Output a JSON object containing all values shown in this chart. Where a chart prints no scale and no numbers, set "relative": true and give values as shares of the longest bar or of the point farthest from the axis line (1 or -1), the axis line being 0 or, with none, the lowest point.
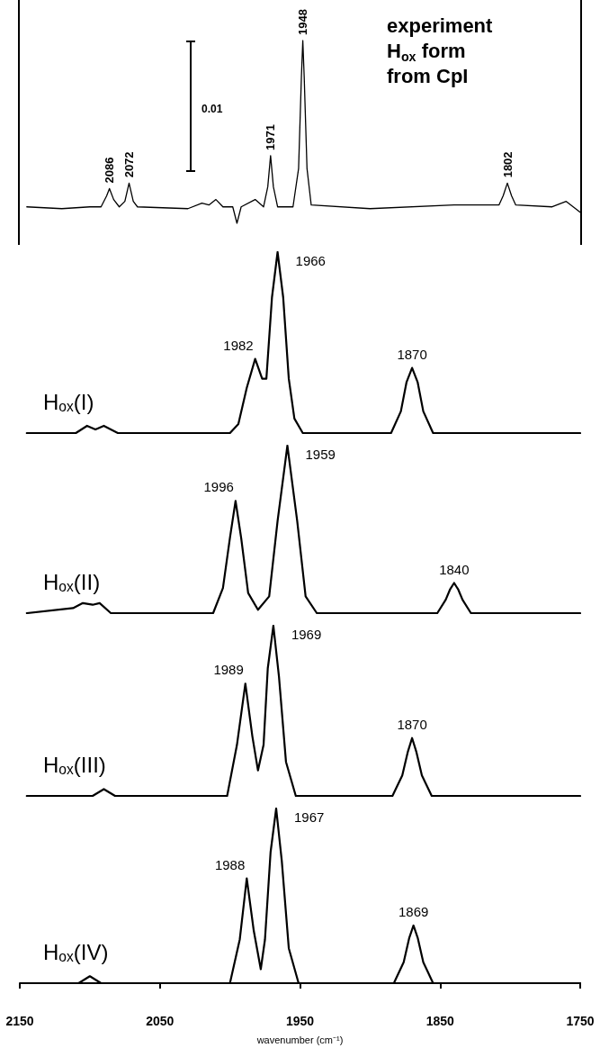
{
  "chart_data": [
    {
      "type": "line",
      "title": "experiment\nH$_{ox}$ form\nfrom CpI",
      "relative": true,
      "xlim": [
        2150,
        1750
      ],
      "tick_labels": false,
      "marker": "none",
      "x": [
        2145,
        2120,
        2100,
        2092,
        2088,
        2086,
        2083,
        2079,
        2075,
        2072,
        2069,
        2066,
        2030,
        2020,
        2015,
        2010,
        2005,
        1998,
        1995,
        1992,
        1982,
        1976,
        1973,
        1971,
        1969,
        1966,
        1955,
        1951,
        1949,
        1948,
        1947,
        1945,
        1942,
        1900,
        1840,
        1808,
        1805,
        1802,
        1799,
        1796,
        1770,
        1760,
        1750
      ],
      "series": [
        {
          "color": "#000000",
          "values": [
            0.09,
            0.08,
            0.09,
            0.09,
            0.15,
            0.19,
            0.13,
            0.09,
            0.12,
            0.22,
            0.12,
            0.09,
            0.08,
            0.11,
            0.1,
            0.13,
            0.09,
            0.09,
            0,
            0.09,
            0.13,
            0.09,
            0.2,
            0.37,
            0.2,
            0.09,
            0.09,
            0.3,
            0.8,
            1.0,
            0.8,
            0.3,
            0.1,
            0.08,
            0.1,
            0.1,
            0.15,
            0.22,
            0.15,
            0.1,
            0.09,
            0.12,
            0.06
          ]
        }
      ],
      "annotations": [
        {
          "text": "2086",
          "x": 2086,
          "y": 0.19
        },
        {
          "text": "2072",
          "x": 2072,
          "y": 0.22
        },
        {
          "text": "1971",
          "x": 1971,
          "y": 0.37
        },
        {
          "text": "1948",
          "x": 1948,
          "y": 1.0
        },
        {
          "text": "1802",
          "x": 1802,
          "y": 0.22
        },
        "0.01"
      ]
    },
    {
      "type": "line",
      "relative": true,
      "xlim": [
        2150,
        1750
      ],
      "tick_labels": false,
      "marker": "none",
      "x": [
        2145,
        2110,
        2102,
        2096,
        2090,
        2080,
        2000,
        1994,
        1988,
        1982,
        1977,
        1974,
        1970,
        1966,
        1962,
        1958,
        1954,
        1948,
        1885,
        1878,
        1874,
        1870,
        1866,
        1862,
        1855,
        1750
      ],
      "series": [
        {
          "name": "H$_{ox}$(I)",
          "color": "#000000",
          "values": [
            0,
            0,
            0.04,
            0.02,
            0.04,
            0,
            0,
            0.05,
            0.25,
            0.41,
            0.3,
            0.3,
            0.75,
            1,
            0.75,
            0.3,
            0.08,
            0,
            0,
            0.12,
            0.28,
            0.36,
            0.28,
            0.12,
            0,
            0
          ]
        }
      ],
      "annotations": [
        {
          "text": "1982",
          "x": 1982,
          "y": 0.41
        },
        {
          "text": "1966",
          "x": 1966,
          "y": 1
        },
        {
          "text": "1870",
          "x": 1870,
          "y": 0.36
        }
      ]
    },
    {
      "type": "line",
      "relative": true,
      "xlim": [
        2150,
        1750
      ],
      "tick_labels": false,
      "marker": "none",
      "x": [
        2145,
        2112,
        2105,
        2098,
        2093,
        2085,
        2012,
        2005,
        2000,
        1996,
        1992,
        1987,
        1980,
        1972,
        1966,
        1959,
        1952,
        1946,
        1938,
        1852,
        1846,
        1843,
        1840,
        1837,
        1834,
        1828,
        1750
      ],
      "series": [
        {
          "name": "H$_{ox}$(II)",
          "color": "#000000",
          "values": [
            0,
            0.03,
            0.06,
            0.05,
            0.06,
            0,
            0,
            0.15,
            0.45,
            0.67,
            0.45,
            0.12,
            0.02,
            0.1,
            0.55,
            1,
            0.55,
            0.1,
            0,
            0,
            0.08,
            0.14,
            0.18,
            0.14,
            0.08,
            0,
            0
          ]
        }
      ],
      "annotations": [
        {
          "text": "1996",
          "x": 1996,
          "y": 0.67
        },
        {
          "text": "1959",
          "x": 1959,
          "y": 1
        },
        {
          "text": "1840",
          "x": 1840,
          "y": 0.18
        }
      ]
    },
    {
      "type": "line",
      "relative": true,
      "xlim": [
        2150,
        1750
      ],
      "tick_labels": false,
      "marker": "none",
      "x": [
        2145,
        2098,
        2090,
        2082,
        2002,
        1995,
        1989,
        1984,
        1980,
        1976,
        1973,
        1969,
        1965,
        1960,
        1953,
        1884,
        1877,
        1873,
        1870,
        1867,
        1863,
        1856,
        1750
      ],
      "series": [
        {
          "name": "H$_{ox}$(III)",
          "color": "#000000",
          "values": [
            0,
            0,
            0.04,
            0,
            0,
            0.3,
            0.66,
            0.35,
            0.15,
            0.3,
            0.75,
            1,
            0.7,
            0.2,
            0,
            0,
            0.12,
            0.26,
            0.34,
            0.26,
            0.12,
            0,
            0
          ]
        }
      ],
      "annotations": [
        {
          "text": "1989",
          "x": 1989,
          "y": 0.66
        },
        {
          "text": "1969",
          "x": 1969,
          "y": 1
        },
        {
          "text": "1870",
          "x": 1870,
          "y": 0.34
        }
      ]
    },
    {
      "type": "line",
      "relative": true,
      "xlim": [
        2150,
        1750
      ],
      "xticks": [
        2150,
        2050,
        1950,
        1850,
        1750
      ],
      "tick_labels": "x",
      "xlabel": "wavenumber (cm⁻¹)",
      "marker": "none",
      "x": [
        2145,
        2108,
        2100,
        2092,
        2000,
        1993,
        1988,
        1983,
        1978,
        1975,
        1971,
        1967,
        1963,
        1958,
        1951,
        1883,
        1876,
        1872,
        1869,
        1866,
        1862,
        1855,
        1750
      ],
      "series": [
        {
          "name": "H$_{ox}$(IV)",
          "color": "#000000",
          "values": [
            0,
            0,
            0.04,
            0,
            0,
            0.25,
            0.6,
            0.3,
            0.08,
            0.25,
            0.75,
            1,
            0.7,
            0.2,
            0,
            0,
            0.12,
            0.26,
            0.33,
            0.26,
            0.12,
            0,
            0
          ]
        }
      ],
      "annotations": [
        {
          "text": "1988",
          "x": 1988,
          "y": 0.6
        },
        {
          "text": "1967",
          "x": 1967,
          "y": 1
        },
        {
          "text": "1869",
          "x": 1869,
          "y": 0.33
        }
      ]
    }
  ]
}
